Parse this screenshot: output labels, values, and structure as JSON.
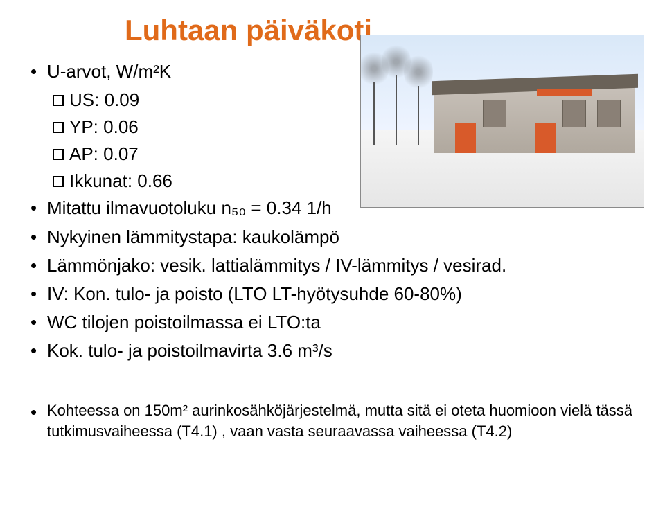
{
  "title": {
    "text": "Luhtaan päiväkoti",
    "color": "#e06a1a"
  },
  "bullets": [
    {
      "level": 1,
      "text": "U-arvot, W/m²K"
    },
    {
      "level": 2,
      "text": "US: 0.09"
    },
    {
      "level": 2,
      "text": "YP: 0.06"
    },
    {
      "level": 2,
      "text": "AP: 0.07"
    },
    {
      "level": 2,
      "text": "Ikkunat: 0.66"
    },
    {
      "level": 1,
      "text": "Mitattu ilmavuotoluku n₅₀ = 0.34 1/h"
    },
    {
      "level": 1,
      "text": "Nykyinen lämmitystapa: kaukolämpö"
    },
    {
      "level": 1,
      "text": "Lämmönjako: vesik. lattialämmitys / IV-lämmitys / vesirad."
    },
    {
      "level": 1,
      "text": "IV: Kon. tulo- ja poisto (LTO LT-hyötysuhde 60-80%)"
    },
    {
      "level": 1,
      "text": "WC tilojen poistoilmassa ei LTO:ta"
    },
    {
      "level": 1,
      "text": "Kok. tulo- ja poistoilmavirta 3.6 m³/s"
    }
  ],
  "footnote": {
    "text": "Kohteessa on 150m² aurinkosähköjärjestelmä, mutta sitä ei oteta huomioon vielä tässä tutkimusvaiheessa (T4.1) , vaan vasta seuraavassa vaiheessa (T4.2)"
  },
  "image": {
    "alt": "Architectural rendering of Luhtaan päiväkoti building",
    "colors": {
      "sky": "#e8f0fa",
      "ground": "#efefef",
      "building_wall": "#c7c0b8",
      "building_roof": "#6a6258",
      "accent": "#d85a2a"
    }
  }
}
